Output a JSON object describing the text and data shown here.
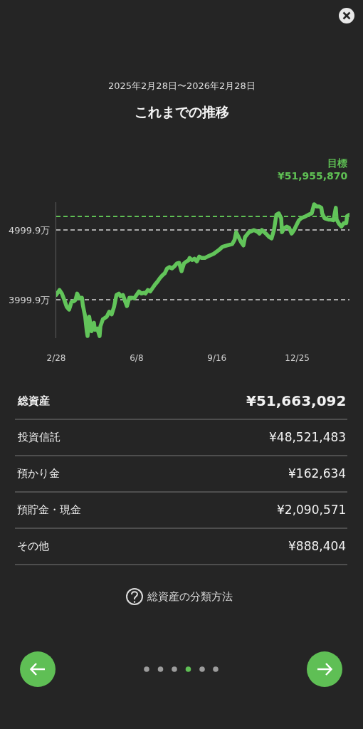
{
  "chart_data": {
    "type": "line",
    "title": "これまでの推移",
    "subtitle": "2025年2月28日〜2026年2月28日",
    "x": [
      "2025-02-28",
      "2025-03-04",
      "2025-03-07",
      "2025-03-10",
      "2025-03-13",
      "2025-03-16",
      "2025-03-19",
      "2025-03-22",
      "2025-03-24",
      "2025-03-26",
      "2025-03-29",
      "2025-04-01",
      "2025-04-02",
      "2025-04-05",
      "2025-04-07",
      "2025-04-08",
      "2025-04-10",
      "2025-04-11",
      "2025-04-13",
      "2025-04-14",
      "2025-04-16",
      "2025-04-17",
      "2025-04-20",
      "2025-04-23",
      "2025-04-24",
      "2025-04-27",
      "2025-05-02",
      "2025-05-05",
      "2025-05-08",
      "2025-05-11",
      "2025-05-14",
      "2025-05-17",
      "2025-05-19",
      "2025-05-22",
      "2025-05-25",
      "2025-05-27",
      "2025-05-30",
      "2025-06-02",
      "2025-06-05",
      "2025-06-08",
      "2025-06-11",
      "2025-06-14",
      "2025-06-17",
      "2025-06-19",
      "2025-06-22",
      "2025-06-25",
      "2025-06-28",
      "2025-07-01",
      "2025-07-04",
      "2025-07-07",
      "2025-07-10",
      "2025-07-13",
      "2025-07-16",
      "2025-07-19",
      "2025-07-22",
      "2025-07-25",
      "2025-07-28",
      "2025-07-31",
      "2025-08-03",
      "2025-08-06",
      "2025-08-09",
      "2025-08-12",
      "2025-08-13",
      "2025-08-16",
      "2025-08-19",
      "2025-08-22",
      "2025-08-25",
      "2025-08-28",
      "2025-09-01",
      "2025-09-06",
      "2025-09-12",
      "2025-09-18",
      "2025-09-23",
      "2025-09-29",
      "2025-10-05",
      "2025-10-08",
      "2025-10-10",
      "2025-10-13",
      "2025-10-16",
      "2025-10-19",
      "2025-10-21",
      "2025-10-26",
      "2025-11-01",
      "2025-11-05",
      "2025-11-08",
      "2025-11-11",
      "2025-11-16",
      "2025-11-20",
      "2025-11-23",
      "2025-11-26",
      "2025-11-29",
      "2025-12-02",
      "2025-12-05",
      "2025-12-06",
      "2025-12-09",
      "2025-12-12",
      "2025-12-15",
      "2025-12-18",
      "2025-12-21",
      "2025-12-24",
      "2025-12-27",
      "2025-12-30",
      "2026-01-03",
      "2026-01-08",
      "2026-01-12",
      "2026-01-15",
      "2026-01-18",
      "2026-01-21",
      "2026-01-24",
      "2026-01-25",
      "2026-01-28",
      "2026-02-02",
      "2026-02-05",
      "2026-02-08",
      "2026-02-11",
      "2026-02-12",
      "2026-02-15",
      "2026-02-18",
      "2026-02-21",
      "2026-02-24",
      "2026-02-25",
      "2026-02-28"
    ],
    "series": [
      {
        "color": "#62c45a",
        "values": [
          4070,
          4140,
          4090,
          4000,
          3900,
          3860,
          3970,
          3980,
          4000,
          4090,
          4020,
          4030,
          3930,
          3760,
          3550,
          3480,
          3760,
          3690,
          3550,
          3620,
          3670,
          3570,
          3590,
          3480,
          3620,
          3720,
          3760,
          3830,
          3790,
          3900,
          4070,
          4090,
          4050,
          4070,
          3970,
          3910,
          4030,
          4030,
          4020,
          4070,
          4120,
          4090,
          4100,
          4090,
          4140,
          4120,
          4170,
          4220,
          4260,
          4310,
          4350,
          4380,
          4450,
          4470,
          4450,
          4480,
          4520,
          4530,
          4410,
          4520,
          4550,
          4570,
          4600,
          4570,
          4590,
          4550,
          4620,
          4600,
          4600,
          4630,
          4660,
          4710,
          4760,
          4780,
          4800,
          4860,
          4970,
          4900,
          4830,
          4780,
          4900,
          4970,
          5000,
          4980,
          4950,
          5000,
          4950,
          4900,
          4880,
          5000,
          5220,
          5240,
          5170,
          4970,
          5030,
          5050,
          5030,
          4950,
          5000,
          5070,
          5140,
          5170,
          5190,
          5220,
          5240,
          5370,
          5340,
          5340,
          5320,
          5240,
          5170,
          5150,
          5150,
          5140,
          5320,
          5150,
          5090,
          5050,
          5100,
          5100,
          5200,
          5220
        ]
      }
    ],
    "xlim": [
      "2025-02-28",
      "2026-02-28"
    ],
    "xticks": [
      {
        "value": "2025-02-28",
        "label": "2/28"
      },
      {
        "value": "2025-06-08",
        "label": "6/8"
      },
      {
        "value": "2025-09-16",
        "label": "9/16"
      },
      {
        "value": "2025-12-25",
        "label": "12/25"
      }
    ],
    "ylim": [
      3450,
      5400
    ],
    "yticks": [
      {
        "value": 3999.9,
        "label": "3999.9万"
      },
      {
        "value": 4999.9,
        "label": "4999.9万"
      }
    ],
    "grid": "y",
    "line_style": "solid",
    "ref_lines": [
      {
        "axis": "y",
        "value": 5195.587,
        "label": "目標\n¥51,955,870",
        "color": "#5fc054",
        "line_style": "dashed"
      }
    ],
    "annotations": [
      "総資産",
      "¥51,663,092",
      "投資信託",
      "¥48,521,483",
      "預かり金",
      "¥162,634",
      "預貯金・現金",
      "¥2,090,571",
      "その他",
      "¥888,404",
      "総資産の分類方法"
    ]
  }
}
